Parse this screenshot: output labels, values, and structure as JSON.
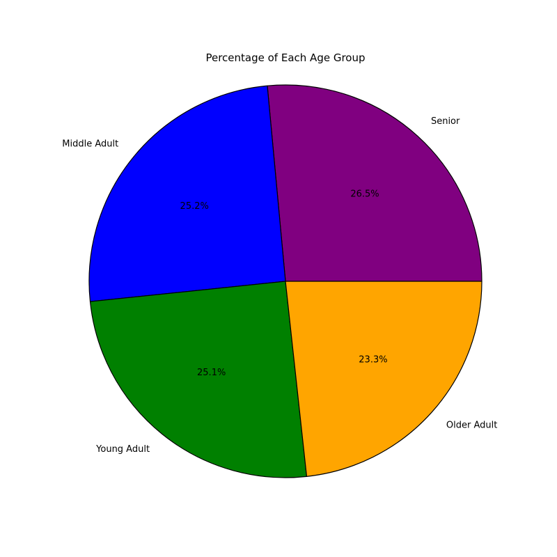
{
  "chart_data": {
    "type": "pie",
    "title": "Percentage of Each Age Group",
    "start_angle_deg": 0,
    "direction": "counterclockwise",
    "slices": [
      {
        "label": "Senior",
        "value": 26.5,
        "pct_label": "26.5%",
        "color": "#800080"
      },
      {
        "label": "Middle Adult",
        "value": 25.2,
        "pct_label": "25.2%",
        "color": "#0000ff"
      },
      {
        "label": "Young Adult",
        "value": 25.1,
        "pct_label": "25.1%",
        "color": "#008000"
      },
      {
        "label": "Older Adult",
        "value": 23.3,
        "pct_label": "23.3%",
        "color": "#ffa500"
      }
    ],
    "legend": "none"
  }
}
